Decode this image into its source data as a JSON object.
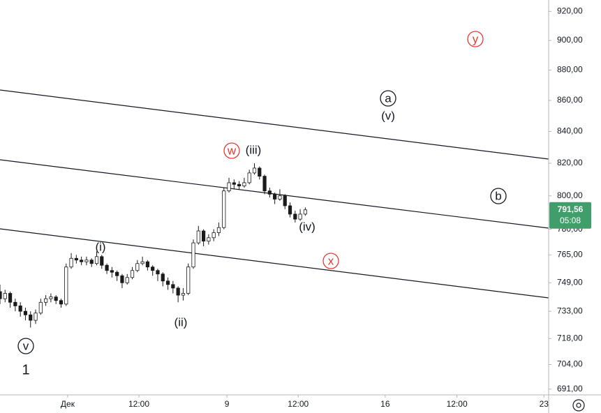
{
  "chart_data": {
    "type": "candlestick",
    "log_scale": true,
    "grid": false,
    "up_color": "#ffffff",
    "down_color": "#1a1a1a",
    "border_color": "#1a1a1a",
    "values": [
      [
        744,
        748,
        737,
        740
      ],
      [
        740,
        745,
        738,
        743
      ],
      [
        743,
        744,
        735,
        738
      ],
      [
        738,
        740,
        733,
        736
      ],
      [
        736,
        738,
        730,
        733
      ],
      [
        733,
        735,
        728,
        731
      ],
      [
        731,
        733,
        724,
        728
      ],
      [
        728,
        734,
        726,
        732
      ],
      [
        732,
        740,
        731,
        738
      ],
      [
        738,
        742,
        736,
        740
      ],
      [
        740,
        743,
        738,
        741
      ],
      [
        741,
        742,
        737,
        739
      ],
      [
        739,
        740,
        735,
        737
      ],
      [
        737,
        760,
        736,
        758
      ],
      [
        758,
        766,
        757,
        763
      ],
      [
        763,
        765,
        760,
        762
      ],
      [
        762,
        764,
        759,
        761
      ],
      [
        761,
        764,
        759,
        762
      ],
      [
        762,
        763,
        758,
        760
      ],
      [
        760,
        767,
        759,
        764
      ],
      [
        764,
        765,
        757,
        759
      ],
      [
        759,
        760,
        754,
        756
      ],
      [
        756,
        758,
        752,
        755
      ],
      [
        755,
        756,
        750,
        753
      ],
      [
        753,
        754,
        746,
        749
      ],
      [
        749,
        754,
        748,
        752
      ],
      [
        752,
        758,
        751,
        756
      ],
      [
        756,
        762,
        755,
        760
      ],
      [
        760,
        764,
        759,
        761
      ],
      [
        761,
        762,
        756,
        758
      ],
      [
        758,
        759,
        753,
        756
      ],
      [
        756,
        757,
        750,
        754
      ],
      [
        754,
        755,
        747,
        750
      ],
      [
        750,
        752,
        745,
        748
      ],
      [
        748,
        750,
        743,
        746
      ],
      [
        746,
        747,
        738,
        742
      ],
      [
        742,
        746,
        739,
        743
      ],
      [
        743,
        760,
        742,
        758
      ],
      [
        758,
        774,
        757,
        772
      ],
      [
        772,
        782,
        771,
        779
      ],
      [
        779,
        780,
        770,
        773
      ],
      [
        773,
        777,
        771,
        775
      ],
      [
        775,
        780,
        773,
        778
      ],
      [
        778,
        784,
        776,
        781
      ],
      [
        781,
        805,
        780,
        803
      ],
      [
        803,
        811,
        802,
        808
      ],
      [
        808,
        810,
        804,
        807
      ],
      [
        807,
        809,
        804,
        806
      ],
      [
        806,
        811,
        805,
        808
      ],
      [
        808,
        816,
        807,
        814
      ],
      [
        814,
        820,
        813,
        817
      ],
      [
        817,
        818,
        810,
        812
      ],
      [
        812,
        813,
        801,
        803
      ],
      [
        803,
        805,
        799,
        801
      ],
      [
        801,
        802,
        795,
        798
      ],
      [
        798,
        804,
        797,
        800
      ],
      [
        800,
        801,
        792,
        794
      ],
      [
        794,
        796,
        787,
        789
      ],
      [
        789,
        791,
        784,
        786
      ],
      [
        786,
        792,
        785,
        789
      ],
      [
        789,
        793,
        788,
        791.56
      ]
    ],
    "xlim": [
      0,
      107
    ],
    "xticks": [
      {
        "value": 13.3,
        "label": "Дек"
      },
      {
        "value": 27.3,
        "label": "12:00"
      },
      {
        "value": 44.6,
        "label": "9"
      },
      {
        "value": 58.6,
        "label": "12:00"
      },
      {
        "value": 75.7,
        "label": "16"
      },
      {
        "value": 89.8,
        "label": "12:00"
      },
      {
        "value": 106.9,
        "label": "23"
      }
    ],
    "ylim": [
      688,
      928
    ],
    "yticks": [
      {
        "value": 920,
        "label": "920,00"
      },
      {
        "value": 900,
        "label": "900,00"
      },
      {
        "value": 880,
        "label": "880,00"
      },
      {
        "value": 860,
        "label": "860,00"
      },
      {
        "value": 840,
        "label": "840,00"
      },
      {
        "value": 820,
        "label": "820,00"
      },
      {
        "value": 800,
        "label": "800,00"
      },
      {
        "value": 780,
        "label": "780,00"
      },
      {
        "value": 765,
        "label": "765,00"
      },
      {
        "value": 749,
        "label": "749,00"
      },
      {
        "value": 733,
        "label": "733,00"
      },
      {
        "value": 718,
        "label": "718,00"
      },
      {
        "value": 704,
        "label": "704,00"
      },
      {
        "value": 691,
        "label": "691,00"
      }
    ],
    "last_price": {
      "value": 791.56,
      "label": "791,56"
    },
    "countdown": "05:08",
    "price_tag_color": "#3f9e6a",
    "annotations": [
      "v",
      "1",
      "(i)",
      "(ii)",
      "w",
      "(iii)",
      "(iv)",
      "x",
      "a",
      "(v)",
      "b",
      "y"
    ]
  }
}
